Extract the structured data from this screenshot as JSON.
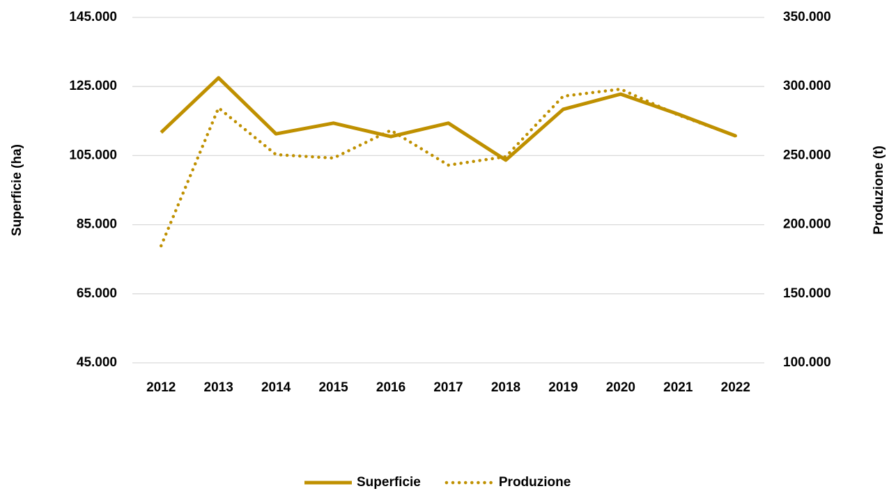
{
  "chart_data": {
    "type": "line",
    "categories": [
      "2012",
      "2013",
      "2014",
      "2015",
      "2016",
      "2017",
      "2018",
      "2019",
      "2020",
      "2021",
      "2022"
    ],
    "series": [
      {
        "name": "Superficie",
        "color": "#bf9000",
        "dash": "solid",
        "values": [
          111700,
          127500,
          111300,
          114400,
          110500,
          114400,
          103700,
          118400,
          122800,
          117000,
          110700
        ]
      },
      {
        "name": "Produzione",
        "color": "#bf9000",
        "dash": "dotted",
        "axis": "y2",
        "values": [
          184700,
          284500,
          250700,
          248200,
          268300,
          243100,
          249200,
          293000,
          298100,
          279400,
          264300
        ]
      }
    ],
    "ylabel": "Superficie (ha)",
    "y2label": "Produzione (t)",
    "ylim": [
      45000,
      145000
    ],
    "yticks": [
      {
        "value": 45000,
        "label": "45.000"
      },
      {
        "value": 65000,
        "label": "65.000"
      },
      {
        "value": 85000,
        "label": "85.000"
      },
      {
        "value": 105000,
        "label": "105.000"
      },
      {
        "value": 125000,
        "label": "125.000"
      },
      {
        "value": 145000,
        "label": "145.000"
      }
    ],
    "y2lim": [
      100000,
      350000
    ],
    "y2ticks": [
      {
        "value": 100000,
        "label": "100.000"
      },
      {
        "value": 150000,
        "label": "150.000"
      },
      {
        "value": 200000,
        "label": "200.000"
      },
      {
        "value": 250000,
        "label": "250.000"
      },
      {
        "value": 300000,
        "label": "300.000"
      },
      {
        "value": 350000,
        "label": "350.000"
      }
    ],
    "grid": true,
    "legend": "bottom"
  }
}
